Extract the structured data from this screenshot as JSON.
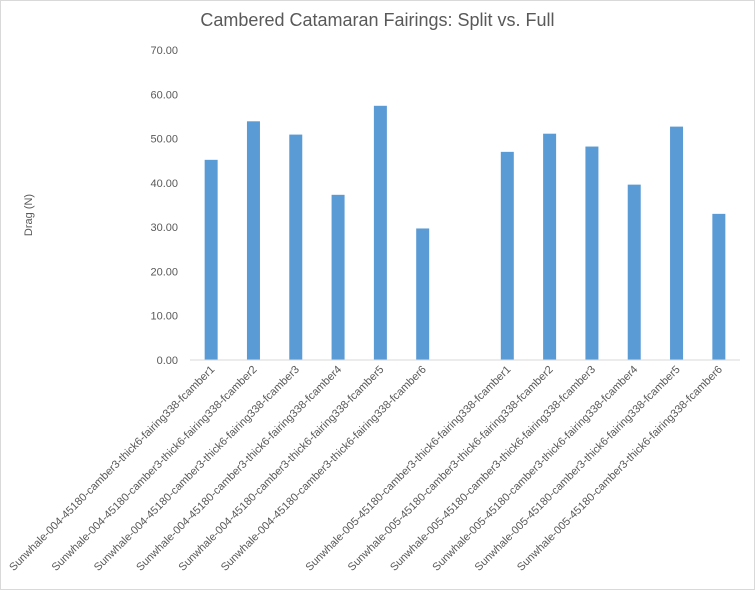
{
  "chart_data": {
    "type": "bar",
    "title": "Cambered Catamaran Fairings: Split vs. Full",
    "ylabel": "Drag (N)",
    "xlabel": "",
    "ylim": [
      0,
      70
    ],
    "yticks": [
      "0.00",
      "10.00",
      "20.00",
      "30.00",
      "40.00",
      "50.00",
      "60.00",
      "70.00"
    ],
    "grid": false,
    "bar_color": "#5b9bd5",
    "categories": [
      "Sunwhale-004-45180-camber3-thick6-fairing338-fcamber1",
      "Sunwhale-004-45180-camber3-thick6-fairing338-fcamber2",
      "Sunwhale-004-45180-camber3-thick6-fairing338-fcamber3",
      "Sunwhale-004-45180-camber3-thick6-fairing338-fcamber4",
      "Sunwhale-004-45180-camber3-thick6-fairing338-fcamber5",
      "Sunwhale-004-45180-camber3-thick6-fairing338-fcamber6",
      "",
      "Sunwhale-005-45180-camber3-thick6-fairing338-fcamber1",
      "Sunwhale-005-45180-camber3-thick6-fairing338-fcamber2",
      "Sunwhale-005-45180-camber3-thick6-fairing338-fcamber3",
      "Sunwhale-005-45180-camber3-thick6-fairing338-fcamber4",
      "Sunwhale-005-45180-camber3-thick6-fairing338-fcamber5",
      "Sunwhale-005-45180-camber3-thick6-fairing338-fcamber6"
    ],
    "values": [
      45.2,
      53.9,
      50.9,
      37.3,
      57.4,
      29.7,
      null,
      47.0,
      51.1,
      48.2,
      39.6,
      52.7,
      33.0
    ]
  }
}
